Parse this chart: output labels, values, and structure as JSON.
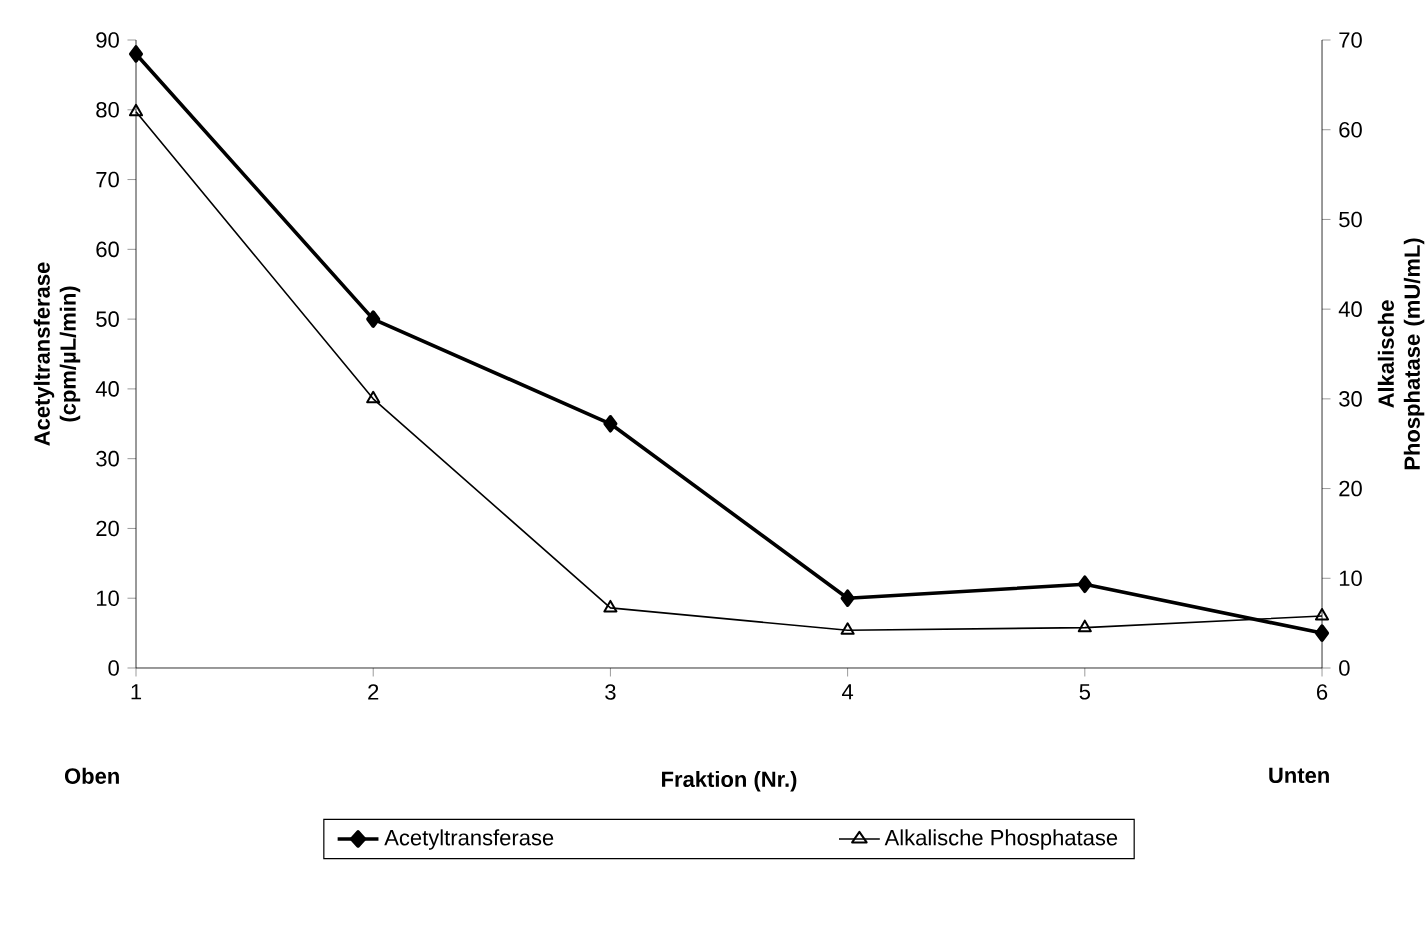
{
  "chart_data": {
    "type": "line",
    "xlabel": "Fraktion (Nr.)",
    "ylabel": "Acetyltransferase (cpm/µL/min)",
    "y2label": "Alkalische Phosphatase (mU/mL)",
    "x": [
      1,
      2,
      3,
      4,
      5,
      6
    ],
    "xlim": [
      1,
      6
    ],
    "xticks": [
      1,
      2,
      3,
      4,
      5,
      6
    ],
    "ylim": [
      0,
      90
    ],
    "yticks": [
      0,
      10,
      20,
      30,
      40,
      50,
      60,
      70,
      80,
      90
    ],
    "y2lim": [
      0,
      70
    ],
    "y2ticks": [
      0,
      10,
      20,
      30,
      40,
      50,
      60,
      70
    ],
    "series": [
      {
        "name": "Acetyltransferase",
        "color": "#000000",
        "marker": "diamond",
        "values": [
          88,
          50,
          35,
          10,
          12,
          5
        ]
      },
      {
        "name": "Alkalische Phosphatase",
        "color": "#000000",
        "marker": "triangle",
        "axis": "y2",
        "values": [
          62,
          30,
          6.7,
          4.2,
          4.5,
          5.8
        ]
      }
    ],
    "annotations": [
      "Oben",
      "Unten"
    ],
    "legend": "bottom",
    "grid": false
  }
}
